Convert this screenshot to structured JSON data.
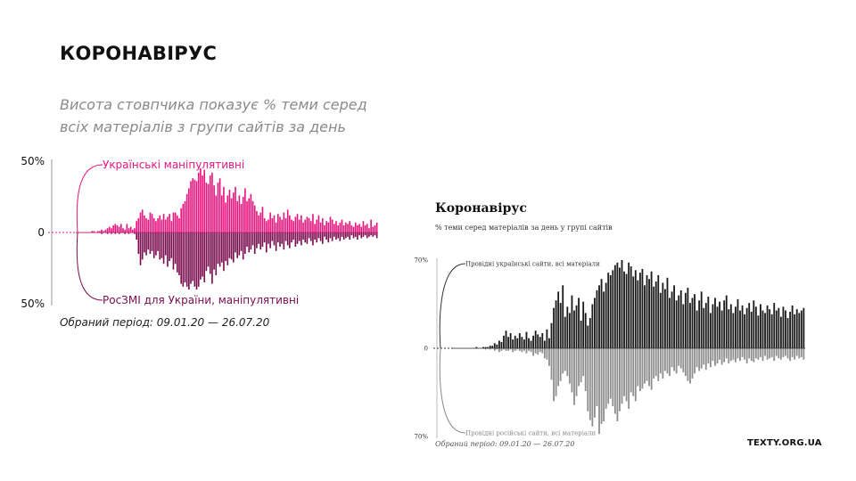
{
  "header": {
    "title": "КОРОНАВІРУС",
    "subtitle": "Висота стовпчика показує % теми серед всіх матеріалів з групи сайтів за день"
  },
  "colors": {
    "ua_series": "#e8157f",
    "ru_series": "#7a0c4f",
    "right_ua_series": "#1b1b1b",
    "right_ru_series": "#8f8f8f"
  },
  "chart_data": [
    {
      "type": "bar",
      "title": "",
      "x_range": [
        "09.01.20",
        "26.07.20"
      ],
      "ylim": [
        -50,
        50
      ],
      "yticks": [
        {
          "value": 50,
          "label": "50%"
        },
        {
          "value": 0,
          "label": "0"
        },
        {
          "value": -50,
          "label": "50%"
        }
      ],
      "series": [
        {
          "name": "Українські маніпулятивні",
          "direction": "up",
          "color": "#e8157f",
          "values": [
            0,
            0,
            0,
            0,
            0,
            0,
            0,
            0,
            1,
            1,
            0,
            1,
            1,
            2,
            1,
            2,
            3,
            4,
            3,
            5,
            6,
            5,
            4,
            6,
            3,
            2,
            6,
            3,
            4,
            2,
            3,
            8,
            10,
            14,
            16,
            12,
            10,
            9,
            14,
            13,
            10,
            8,
            10,
            12,
            9,
            13,
            9,
            11,
            13,
            8,
            14,
            14,
            12,
            10,
            17,
            20,
            22,
            27,
            31,
            36,
            38,
            37,
            36,
            42,
            45,
            40,
            44,
            35,
            34,
            40,
            42,
            33,
            26,
            35,
            38,
            26,
            32,
            21,
            26,
            30,
            24,
            28,
            32,
            22,
            26,
            20,
            25,
            31,
            22,
            24,
            27,
            22,
            19,
            15,
            12,
            14,
            18,
            10,
            8,
            9,
            14,
            10,
            12,
            7,
            13,
            11,
            9,
            14,
            10,
            16,
            12,
            9,
            8,
            11,
            13,
            9,
            12,
            7,
            9,
            11,
            10,
            8,
            13,
            6,
            9,
            12,
            7,
            10,
            5,
            8,
            7,
            11,
            9,
            6,
            8,
            5,
            7,
            9,
            5,
            7,
            6,
            8,
            5,
            4,
            7,
            5,
            6,
            4,
            8,
            5,
            6,
            3,
            9,
            4,
            5,
            7
          ]
        },
        {
          "name": "РосЗМІ для України, маніпулятивні",
          "direction": "down",
          "color": "#7a0c4f",
          "values": [
            0,
            0,
            0,
            0,
            0,
            0,
            0,
            0,
            0,
            0,
            0,
            0,
            0,
            1,
            0,
            0,
            1,
            0,
            1,
            0,
            1,
            0,
            1,
            0,
            0,
            1,
            0,
            1,
            0,
            0,
            1,
            5,
            15,
            23,
            19,
            14,
            16,
            12,
            15,
            13,
            18,
            16,
            13,
            19,
            18,
            22,
            16,
            24,
            20,
            18,
            26,
            22,
            28,
            30,
            36,
            38,
            35,
            38,
            40,
            36,
            34,
            38,
            40,
            38,
            33,
            31,
            35,
            27,
            24,
            29,
            36,
            26,
            30,
            22,
            24,
            21,
            27,
            20,
            23,
            18,
            19,
            21,
            14,
            18,
            16,
            13,
            19,
            15,
            10,
            14,
            12,
            9,
            15,
            11,
            8,
            12,
            10,
            7,
            14,
            8,
            11,
            6,
            9,
            13,
            7,
            10,
            8,
            12,
            6,
            9,
            11,
            7,
            5,
            10,
            8,
            6,
            9,
            5,
            7,
            8,
            4,
            6,
            9,
            5,
            7,
            4,
            6,
            8,
            3,
            5,
            7,
            4,
            6,
            3,
            5,
            4,
            6,
            3,
            5,
            4,
            3,
            5,
            2,
            4,
            3,
            5,
            2,
            4,
            3,
            2,
            4,
            3,
            2,
            3,
            2,
            4
          ]
        }
      ]
    },
    {
      "type": "bar",
      "title": "Коронавірус",
      "subtitle": "% теми серед матеріалів за день у групі сайтів",
      "x_range": [
        "09.01.20",
        "26.07.20"
      ],
      "ylim": [
        -70,
        70
      ],
      "yticks": [
        {
          "value": 70,
          "label": "70%"
        },
        {
          "value": 0,
          "label": "0"
        },
        {
          "value": -70,
          "label": "70%"
        }
      ],
      "series": [
        {
          "name": "Провідні українські сайти, всі матеріали",
          "direction": "up",
          "color": "#1b1b1b",
          "values": [
            0,
            0,
            0,
            0,
            0,
            0,
            0,
            0,
            0,
            0,
            1,
            0,
            0,
            1,
            1,
            1,
            2,
            2,
            4,
            3,
            6,
            5,
            10,
            14,
            9,
            12,
            7,
            10,
            8,
            12,
            9,
            7,
            13,
            8,
            6,
            10,
            14,
            11,
            9,
            12,
            6,
            15,
            8,
            20,
            32,
            38,
            45,
            36,
            50,
            25,
            33,
            28,
            42,
            30,
            34,
            40,
            22,
            37,
            28,
            18,
            24,
            35,
            40,
            46,
            50,
            55,
            45,
            52,
            60,
            58,
            62,
            66,
            68,
            64,
            70,
            61,
            59,
            68,
            65,
            57,
            62,
            54,
            60,
            63,
            50,
            58,
            55,
            61,
            49,
            53,
            58,
            44,
            52,
            47,
            56,
            40,
            45,
            50,
            38,
            42,
            46,
            35,
            44,
            48,
            36,
            40,
            43,
            30,
            38,
            45,
            32,
            36,
            41,
            28,
            35,
            40,
            33,
            37,
            30,
            38,
            42,
            31,
            35,
            28,
            33,
            39,
            30,
            34,
            27,
            32,
            36,
            29,
            38,
            33,
            26,
            35,
            30,
            28,
            34,
            31,
            27,
            36,
            30,
            32,
            25,
            33,
            30,
            24,
            29,
            34,
            27,
            31,
            28,
            30,
            32
          ]
        },
        {
          "name": "Провідні російські сайти, всі матеріали",
          "direction": "down",
          "color": "#8f8f8f",
          "values": [
            0,
            0,
            0,
            0,
            0,
            0,
            0,
            0,
            0,
            0,
            0,
            0,
            0,
            0,
            1,
            0,
            1,
            0,
            2,
            1,
            3,
            2,
            1,
            2,
            2,
            1,
            3,
            2,
            1,
            2,
            3,
            2,
            4,
            2,
            3,
            6,
            4,
            5,
            3,
            4,
            8,
            9,
            14,
            25,
            42,
            38,
            30,
            26,
            20,
            18,
            22,
            28,
            35,
            45,
            38,
            30,
            27,
            22,
            34,
            50,
            57,
            62,
            55,
            46,
            68,
            60,
            58,
            48,
            44,
            40,
            46,
            52,
            58,
            50,
            44,
            38,
            42,
            48,
            35,
            38,
            42,
            30,
            34,
            32,
            28,
            26,
            30,
            33,
            24,
            22,
            26,
            20,
            24,
            18,
            20,
            22,
            15,
            18,
            20,
            14,
            16,
            19,
            22,
            26,
            28,
            24,
            20,
            15,
            18,
            16,
            13,
            17,
            12,
            15,
            10,
            14,
            12,
            9,
            13,
            11,
            8,
            12,
            10,
            9,
            11,
            8,
            10,
            7,
            9,
            12,
            8,
            10,
            11,
            8,
            9,
            7,
            10,
            6,
            9,
            8,
            7,
            10,
            6,
            8,
            9,
            7,
            6,
            8,
            10,
            7,
            9,
            6,
            8,
            7,
            9
          ]
        }
      ]
    }
  ],
  "footer": {
    "left_period": "Обраний період: 09.01.20 — 26.07.20",
    "right_period": "Обраний період: 09.01.20 — 26.07.20",
    "brand": "TEXTY.ORG.UA"
  }
}
